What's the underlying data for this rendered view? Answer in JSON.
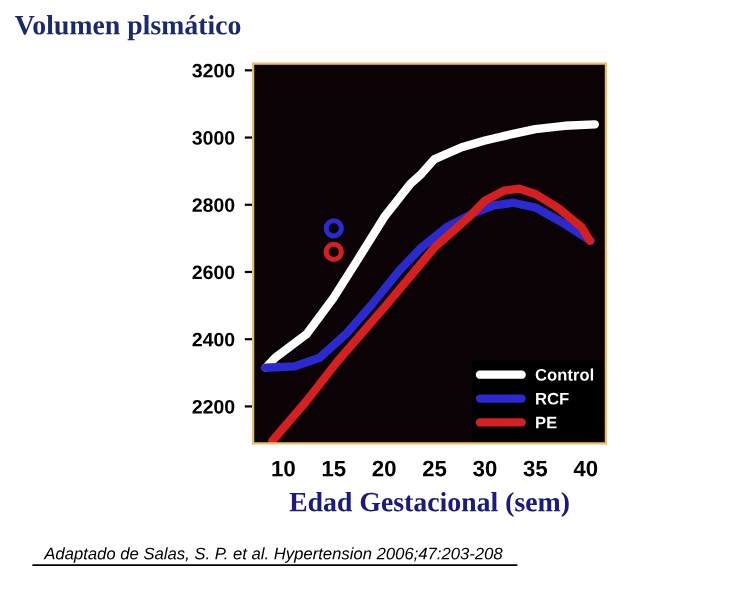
{
  "chart_data": {
    "type": "line",
    "title": "Volumen plsmático",
    "xlabel": "Edad Gestacional (sem)",
    "annotations": [
      "Adaptado de Salas, S. P. et al. Hypertension 2006;47:203-208"
    ],
    "xlim": [
      7,
      42
    ],
    "ylim": [
      2090,
      3220
    ],
    "xticks": [
      10,
      15,
      20,
      25,
      30,
      35,
      40
    ],
    "yticks": [
      2200,
      2400,
      2600,
      2800,
      3000,
      3200
    ],
    "grid": false,
    "legend": "bottom right",
    "marker": "none",
    "line_style": "solid",
    "series": [
      {
        "name": "Control",
        "color": "#ffffff",
        "x": [
          8.25,
          9.2,
          12.3,
          15,
          17.3,
          20,
          22.6,
          23.7,
          25,
          27.7,
          30,
          32.8,
          35,
          37.9,
          40.9
        ],
        "values": [
          2315,
          2345,
          2415,
          2524,
          2633,
          2763,
          2862,
          2892,
          2936,
          2971,
          2991,
          3011,
          3025,
          3035,
          3039
        ]
      },
      {
        "name": "RCF",
        "color": "#2a2ad0",
        "x": [
          8.25,
          11.1,
          13.6,
          16.2,
          18.8,
          21.5,
          23.7,
          26.2,
          29,
          30.9,
          32.8,
          35,
          37.9,
          40.5
        ],
        "values": [
          2315,
          2319,
          2345,
          2415,
          2504,
          2604,
          2673,
          2733,
          2777,
          2798,
          2806,
          2792,
          2743,
          2693
        ]
      },
      {
        "name": "PE",
        "color": "#d42020",
        "x": [
          8.9,
          12.3,
          15.4,
          20,
          25,
          28.4,
          30,
          31.9,
          33.4,
          35,
          37.2,
          39.6,
          40.4
        ],
        "values": [
          2097,
          2216,
          2335,
          2494,
          2673,
          2763,
          2812,
          2842,
          2848,
          2832,
          2792,
          2733,
          2693
        ]
      },
      {
        "type": "scatter",
        "color": "#2a2ad0",
        "marker": "circle",
        "x": [
          15
        ],
        "values": [
          2730
        ]
      },
      {
        "type": "scatter",
        "color": "#d42020",
        "marker": "circle",
        "x": [
          15
        ],
        "values": [
          2660
        ]
      }
    ]
  }
}
